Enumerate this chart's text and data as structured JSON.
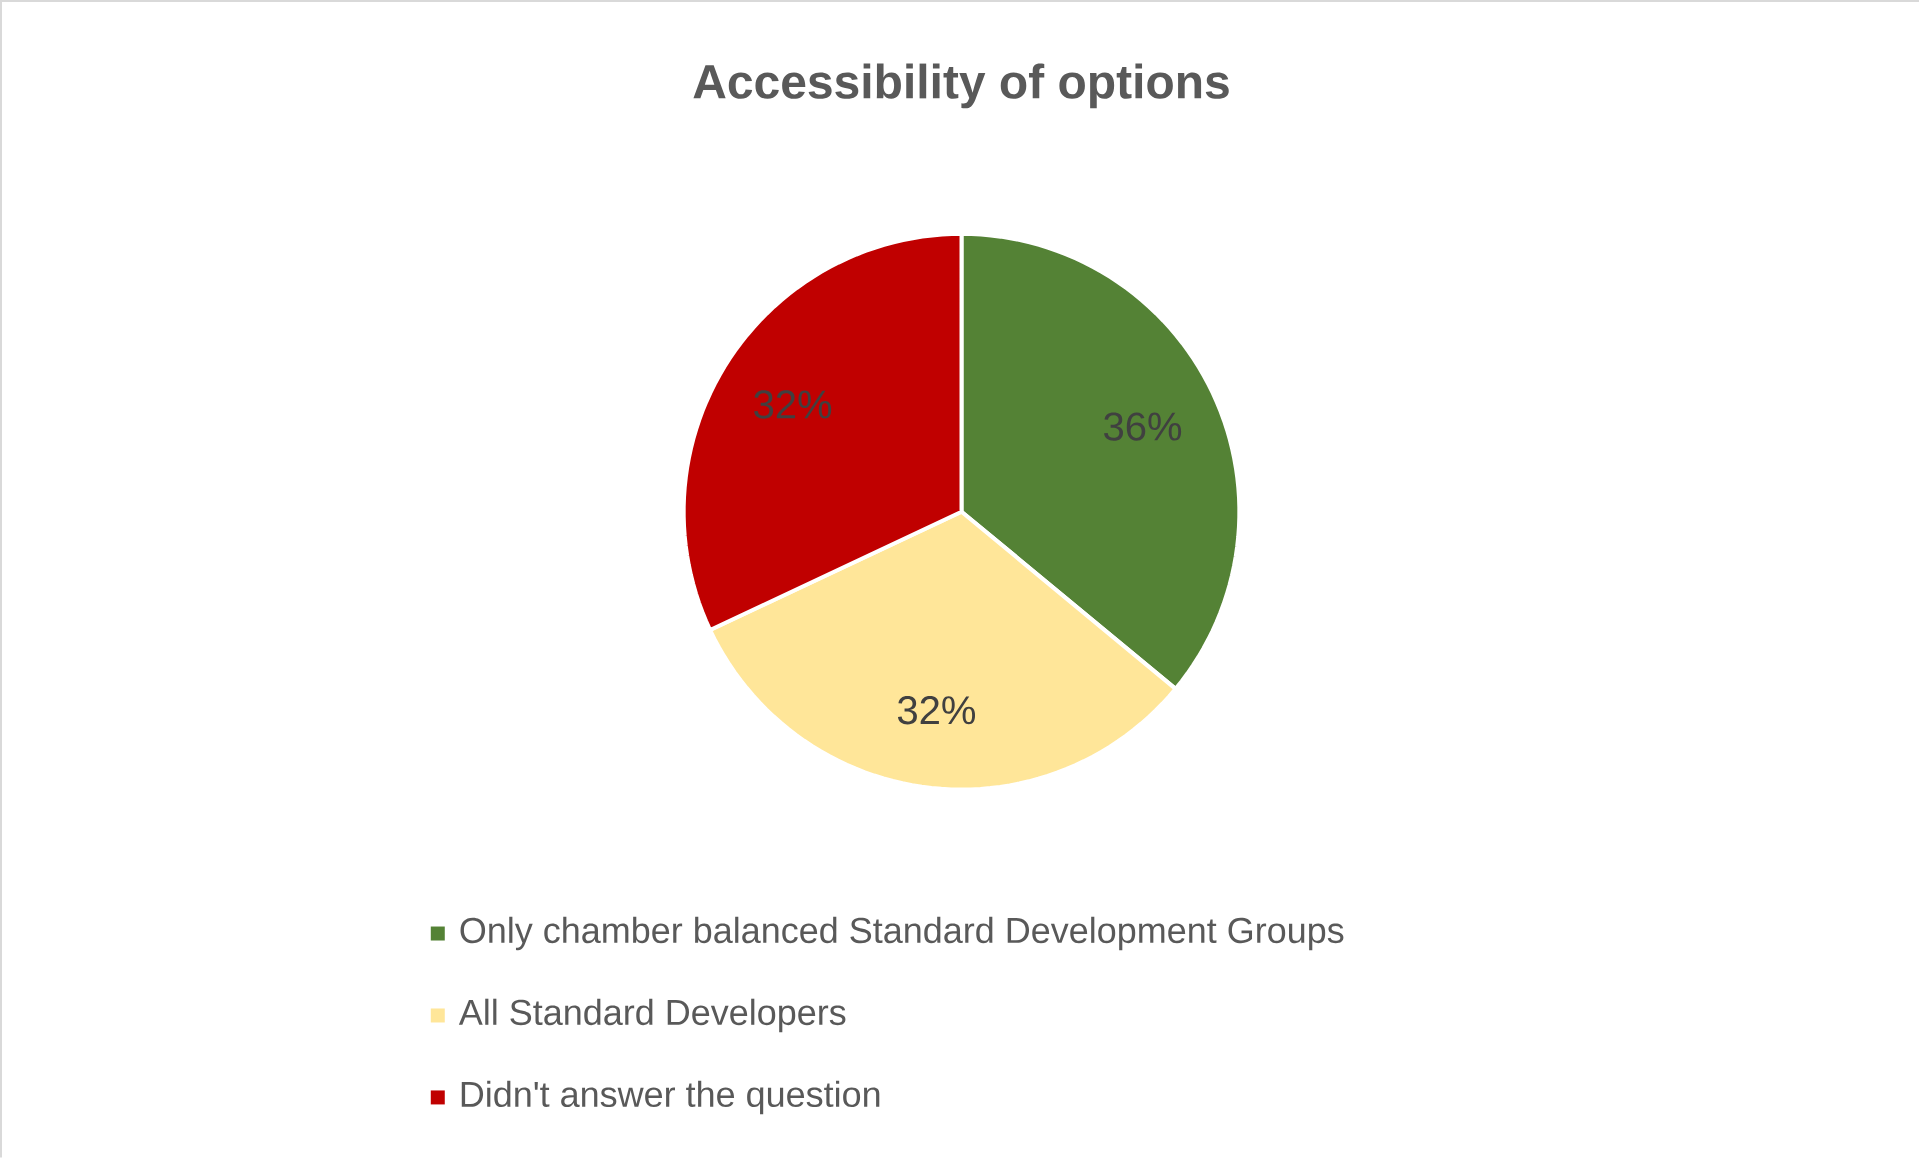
{
  "chart_data": {
    "type": "pie",
    "title": "Accessibility of options",
    "categories": [
      "Only chamber balanced Standard Development Groups",
      "All Standard Developers",
      "Didn't answer the question"
    ],
    "values": [
      36,
      32,
      32
    ],
    "value_labels": [
      "36%",
      "32%",
      "32%"
    ],
    "colors": [
      "#548235",
      "#ffe699",
      "#c00000"
    ],
    "legend": "bottom"
  }
}
